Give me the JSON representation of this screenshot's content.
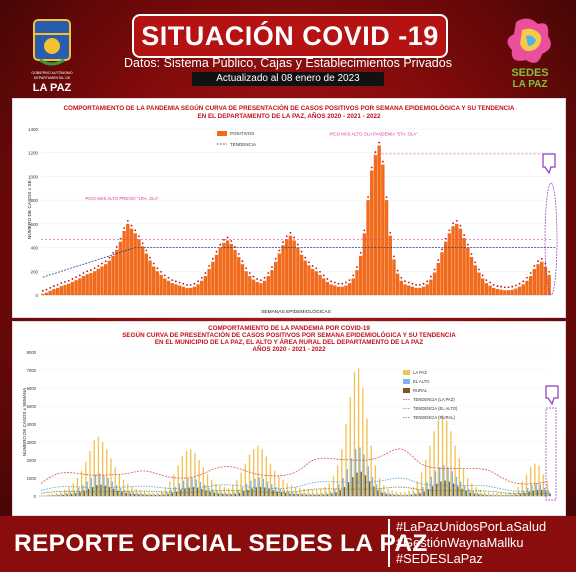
{
  "header": {
    "title": "SITUACIÓN COVID -19",
    "subtitle": "Datos: Sistema Público, Cajas y Establecimientos Privados",
    "updated": "Actualizado al 08 enero de 2023",
    "left_logo_text": [
      "GOBIERNO AUTÓNOMO",
      "DEPARTAMENTAL DE",
      "LA PAZ"
    ],
    "right_logo_text": [
      "SEDES",
      "LA PAZ"
    ]
  },
  "chart_data": [
    {
      "type": "bar",
      "title": [
        "COMPORTAMIENTO DE LA PANDEMIA SEGÚN CURVA DE PRESENTACIÓN DE CASOS POSITIVOS POR SEMANA EPIDEMIOLÓGICA Y SU TENDENCIA",
        "EN EL DEPARTAMENTO DE LA PAZ, AÑOS 2020 - 2021 - 2022"
      ],
      "xlabel": "SEMANAS EPIDEMIOLÓGICAS",
      "ylabel": "NÚMERO DE CASOS x SE.",
      "ylim": [
        0,
        1400
      ],
      "yticks": [
        0,
        200,
        400,
        600,
        800,
        1000,
        1200,
        1400
      ],
      "legend": [
        "POSITIVOS",
        "TENDENCIA"
      ],
      "legend_position": "top-right",
      "annotations": [
        "PICO MÁS ALTO PREVIO \"1RA. OLA\"",
        "PICO MÁS ALTO OLA PANDEMIA \"5TA. OLA\""
      ],
      "colors": {
        "positivos": "#f26a1b",
        "tendencia": "#2b3f8f",
        "trend_high": "#d63aa0",
        "ref_line": "#e84a8a"
      },
      "series": [
        {
          "name": "POSITIVOS",
          "values": [
            10,
            20,
            35,
            50,
            60,
            75,
            85,
            95,
            110,
            125,
            140,
            160,
            175,
            185,
            200,
            220,
            240,
            260,
            290,
            330,
            380,
            450,
            540,
            600,
            560,
            520,
            470,
            410,
            350,
            290,
            240,
            200,
            170,
            140,
            120,
            100,
            90,
            80,
            70,
            60,
            60,
            70,
            90,
            120,
            160,
            220,
            280,
            340,
            400,
            440,
            460,
            430,
            380,
            320,
            260,
            200,
            160,
            130,
            110,
            100,
            120,
            160,
            210,
            280,
            350,
            420,
            470,
            500,
            460,
            400,
            340,
            290,
            250,
            220,
            200,
            170,
            140,
            110,
            90,
            80,
            70,
            70,
            80,
            100,
            140,
            210,
            330,
            520,
            800,
            1050,
            1180,
            1260,
            1100,
            800,
            500,
            300,
            180,
            120,
            90,
            80,
            70,
            60,
            60,
            70,
            90,
            130,
            190,
            270,
            360,
            450,
            520,
            580,
            600,
            560,
            480,
            400,
            320,
            250,
            190,
            140,
            100,
            80,
            60,
            50,
            45,
            40,
            40,
            45,
            55,
            70,
            90,
            120,
            160,
            220,
            260,
            280,
            240,
            170
          ]
        },
        {
          "name": "TENDENCIA",
          "values": [
            150,
            160,
            170,
            180,
            190,
            200,
            210,
            220,
            230,
            240,
            250,
            260,
            270,
            280,
            290,
            300,
            310,
            320,
            330,
            340,
            350,
            360,
            370,
            380,
            390,
            400,
            400,
            400,
            400,
            400,
            400,
            400,
            400,
            400,
            400,
            400,
            400,
            400,
            400,
            400,
            400,
            400,
            400,
            400,
            400,
            400,
            400,
            400,
            400,
            400,
            400,
            400,
            400,
            400,
            400,
            400,
            400,
            400,
            400,
            400,
            400,
            400,
            400,
            400,
            400,
            400,
            400,
            400,
            400,
            400,
            400,
            400,
            400,
            400,
            400,
            400,
            400,
            400,
            400,
            400,
            400,
            400,
            400,
            400,
            400,
            400,
            400,
            400,
            400,
            400,
            400,
            400,
            400,
            400,
            400,
            400,
            400,
            400,
            400,
            400,
            400,
            400,
            400,
            400,
            400,
            400,
            400,
            400,
            400,
            400,
            400,
            400,
            400,
            400,
            400,
            400,
            400,
            400,
            400,
            400,
            400,
            400,
            400,
            400,
            400,
            400,
            400,
            400,
            400,
            400,
            400,
            400,
            400,
            400,
            400,
            400,
            400,
            400,
            400,
            400
          ]
        }
      ]
    },
    {
      "type": "bar",
      "title": [
        "COMPORTAMIENTO DE LA PANDEMIA POR COVID-19",
        "SEGÚN CURVA DE PRESENTACIÓN DE CASOS POSITIVOS POR SEMANA EPIDEMIOLÓGICA Y SU TENDENCIA",
        "EN EL MUNICIPIO DE LA PAZ, EL ALTO Y ÁREA RURAL DEL DEPARTAMENTO DE LA PAZ",
        "AÑOS 2020 - 2021 - 2022"
      ],
      "ylabel": "NÚMERO DE CASOS x SEMANA",
      "ylim": [
        0,
        8000
      ],
      "yticks": [
        0,
        1000,
        2000,
        3000,
        4000,
        5000,
        6000,
        7000,
        8000
      ],
      "legend": [
        "LA PAZ",
        "EL ALTO",
        "RURAL",
        "TENDENCIA (LA PAZ)",
        "TENDENCIA (EL ALTO)",
        "TENDENCIA (RURAL)"
      ],
      "legend_position": "top-right",
      "colors": {
        "la_paz": "#f2c14e",
        "el_alto": "#7fb2e5",
        "rural": "#7a5a1e",
        "trend_la_paz": "#d9534f",
        "trend_el_alto": "#4aa3df",
        "trend_rural": "#6b8e23"
      },
      "series": [
        {
          "name": "LA PAZ",
          "values": [
            20,
            40,
            80,
            120,
            180,
            250,
            350,
            500,
            700,
            1000,
            1400,
            1900,
            2500,
            3100,
            3300,
            3000,
            2600,
            2100,
            1600,
            1200,
            900,
            700,
            500,
            400,
            300,
            250,
            200,
            180,
            200,
            300,
            500,
            800,
            1200,
            1700,
            2200,
            2500,
            2600,
            2400,
            2000,
            1600,
            1200,
            900,
            700,
            600,
            500,
            450,
            600,
            900,
            1300,
            1800,
            2300,
            2600,
            2800,
            2600,
            2200,
            1800,
            1400,
            1100,
            900,
            700,
            600,
            500,
            450,
            400,
            380,
            360,
            350,
            400,
            500,
            700,
            1100,
            1700,
            2600,
            4000,
            5500,
            6900,
            7100,
            6000,
            4300,
            2800,
            1700,
            1000,
            600,
            400,
            300,
            250,
            200,
            220,
            300,
            500,
            800,
            1300,
            2000,
            2800,
            3600,
            4200,
            4500,
            4200,
            3600,
            2800,
            2100,
            1500,
            1000,
            700,
            500,
            350,
            250,
            200,
            180,
            170,
            160,
            170,
            200,
            300,
            500,
            800,
            1200,
            1600,
            1800,
            1700,
            1200,
            700
          ]
        },
        {
          "name": "EL ALTO",
          "values": [
            10,
            20,
            40,
            60,
            90,
            120,
            170,
            240,
            320,
            450,
            600,
            800,
            1000,
            1200,
            1250,
            1150,
            1000,
            800,
            600,
            450,
            350,
            280,
            220,
            180,
            150,
            130,
            110,
            100,
            110,
            150,
            230,
            350,
            500,
            700,
            850,
            950,
            1000,
            920,
            780,
            620,
            470,
            360,
            280,
            230,
            200,
            180,
            240,
            350,
            500,
            680,
            850,
            960,
            1020,
            950,
            800,
            650,
            500,
            400,
            330,
            260,
            220,
            190,
            170,
            150,
            140,
            135,
            130,
            150,
            190,
            270,
            420,
            650,
            1000,
            1500,
            2100,
            2600,
            2700,
            2300,
            1650,
            1050,
            650,
            380,
            230,
            160,
            120,
            100,
            80,
            90,
            120,
            190,
            310,
            500,
            770,
            1070,
            1380,
            1600,
            1720,
            1600,
            1380,
            1070,
            800,
            570,
            380,
            270,
            190,
            130,
            100,
            80,
            70,
            65,
            60,
            65,
            80,
            120,
            190,
            300,
            460,
            610,
            690,
            650,
            460,
            270
          ]
        },
        {
          "name": "RURAL",
          "values": [
            5,
            10,
            20,
            30,
            45,
            60,
            85,
            120,
            160,
            220,
            300,
            400,
            500,
            600,
            620,
            570,
            500,
            400,
            300,
            230,
            170,
            140,
            110,
            90,
            75,
            65,
            55,
            50,
            55,
            75,
            115,
            175,
            250,
            350,
            420,
            470,
            500,
            460,
            390,
            310,
            235,
            180,
            140,
            115,
            100,
            90,
            120,
            175,
            250,
            340,
            420,
            480,
            510,
            475,
            400,
            325,
            250,
            200,
            165,
            130,
            110,
            95,
            85,
            75,
            70,
            68,
            65,
            75,
            95,
            135,
            210,
            325,
            500,
            750,
            1050,
            1300,
            1350,
            1150,
            825,
            525,
            325,
            190,
            115,
            80,
            60,
            50,
            40,
            45,
            60,
            95,
            155,
            250,
            385,
            535,
            690,
            800,
            860,
            800,
            690,
            535,
            400,
            285,
            190,
            135,
            95,
            65,
            50,
            40,
            35,
            33,
            30,
            33,
            40,
            60,
            95,
            150,
            230,
            305,
            345,
            325,
            230,
            135
          ]
        }
      ]
    }
  ],
  "footer": {
    "main": "REPORTE OFICIAL SEDES LA PAZ",
    "hashtags": [
      "#LaPazUnidosPorLaSalud",
      "#GestiónWaynaMallku",
      "#SEDESLaPaz"
    ]
  }
}
